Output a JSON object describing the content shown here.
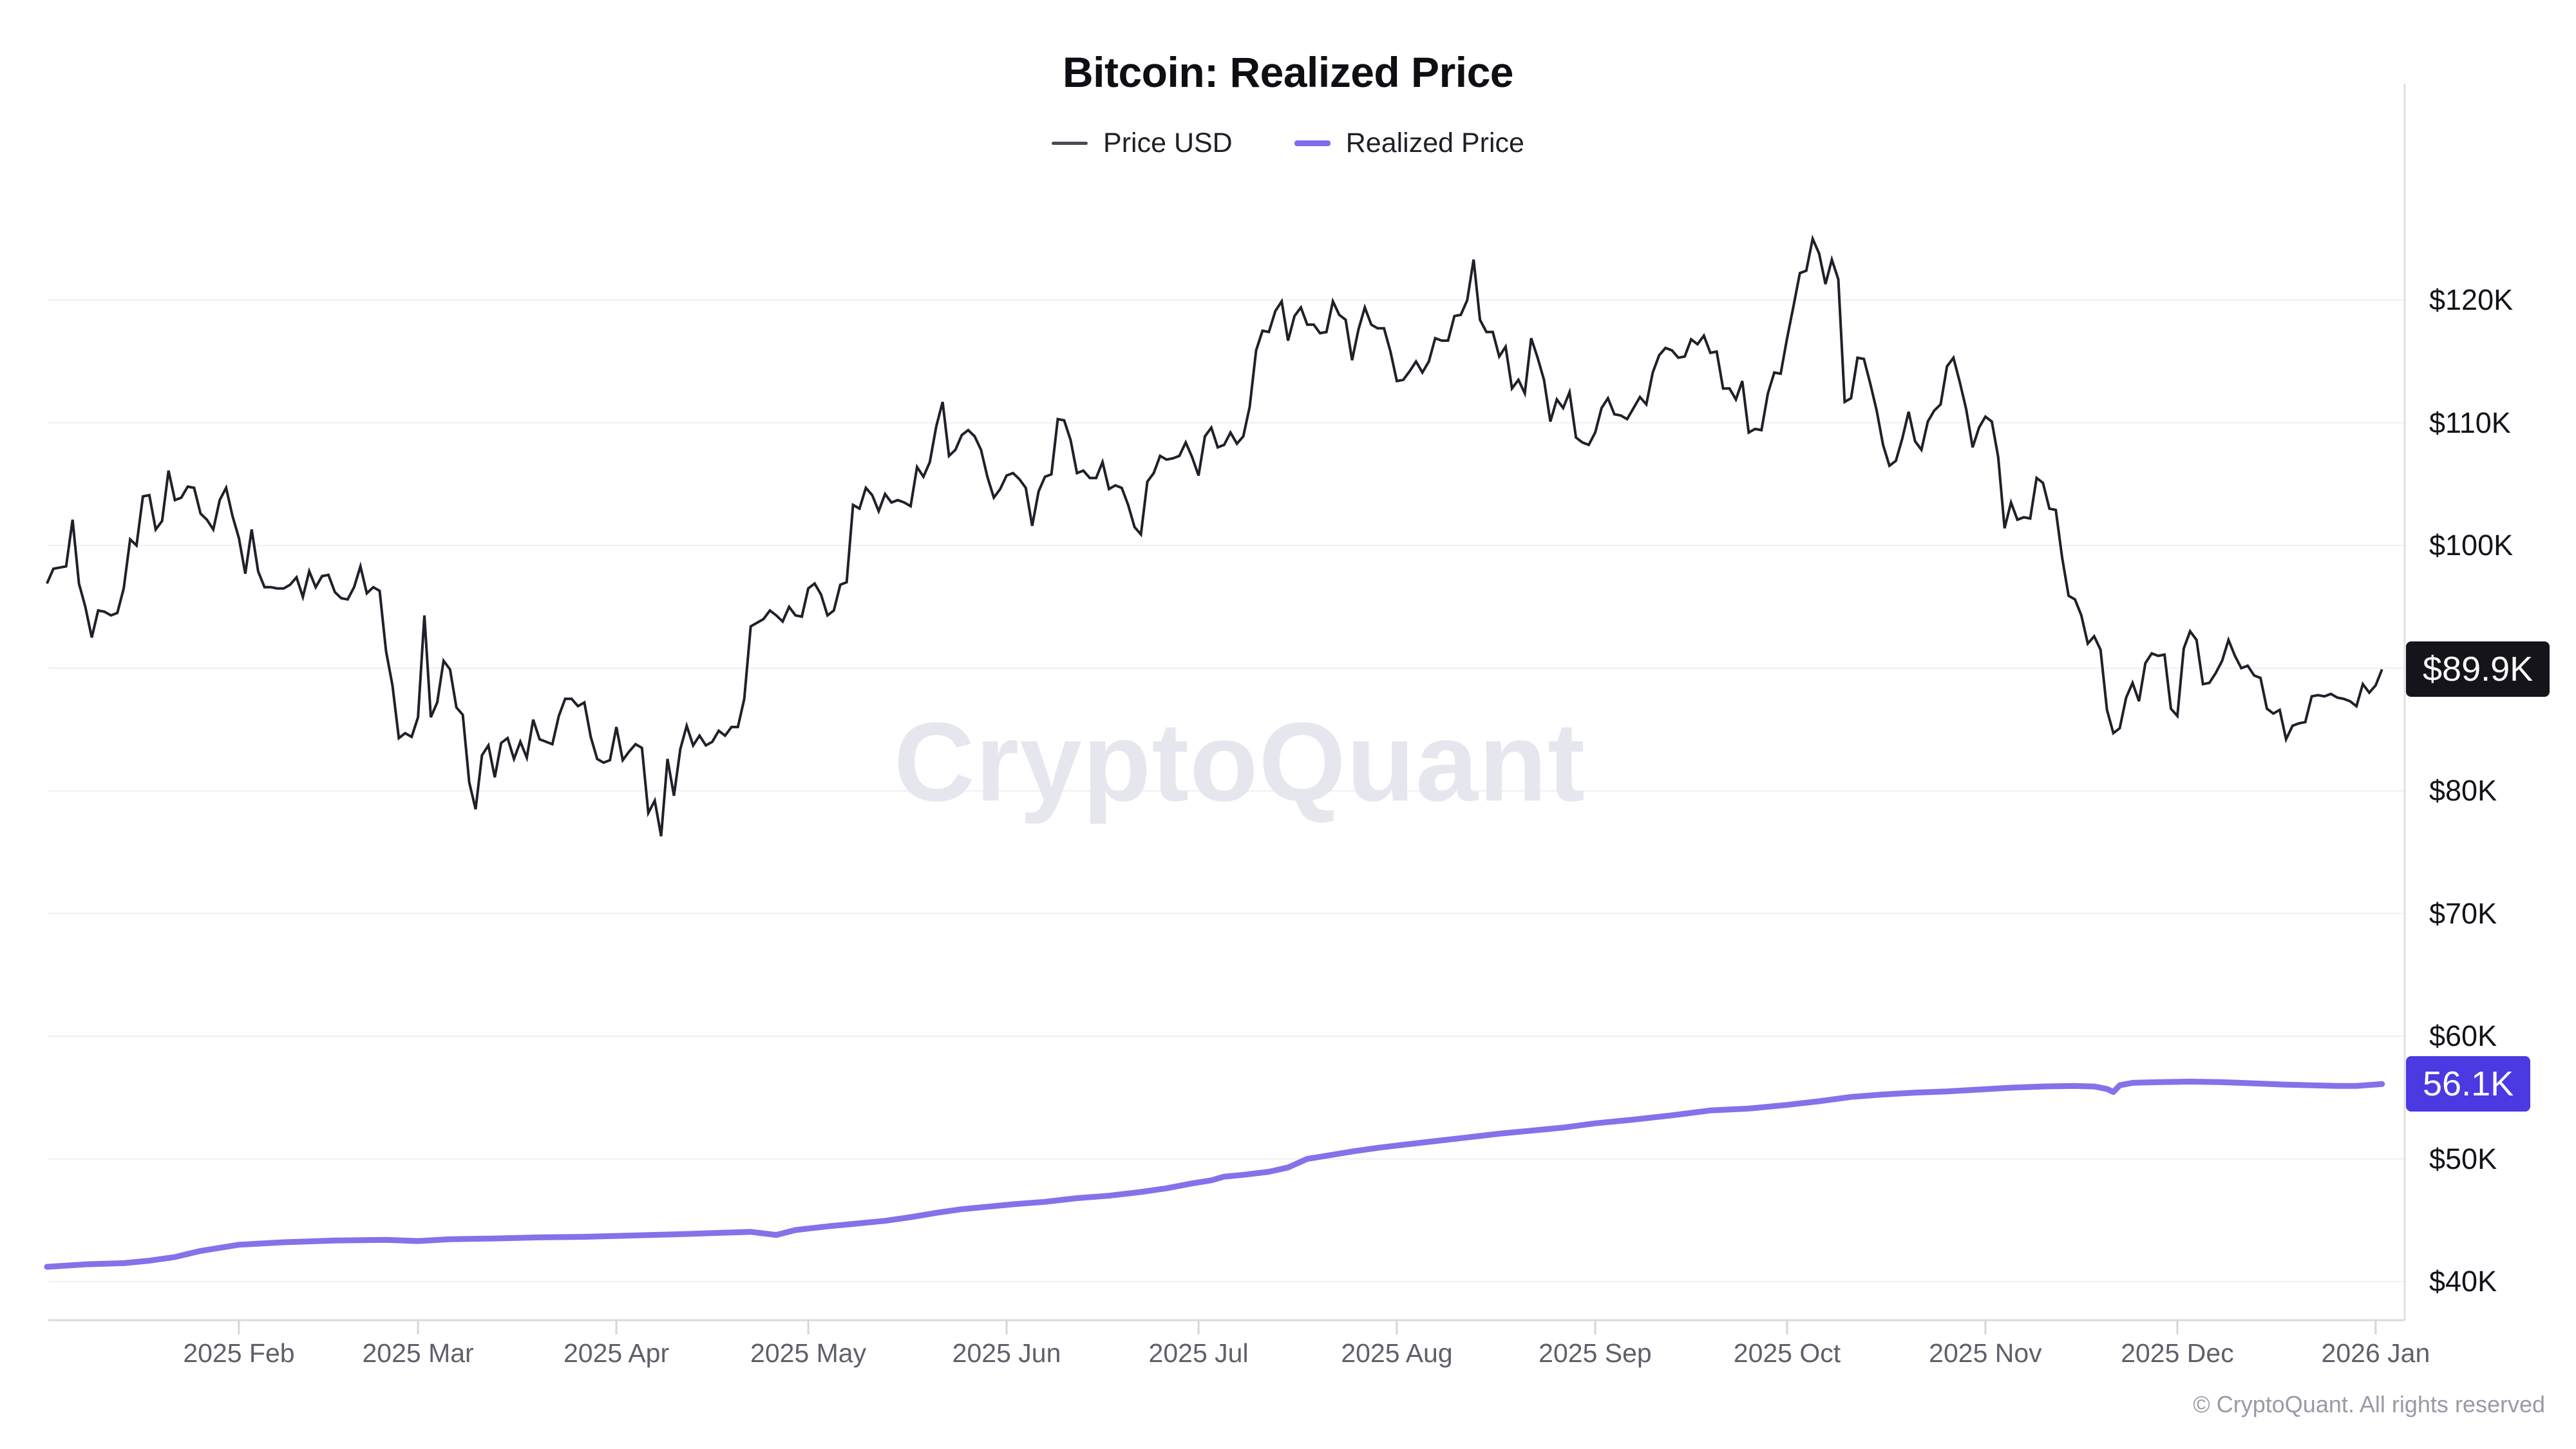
{
  "title": "Bitcoin: Realized Price",
  "legend": [
    {
      "label": "Price USD",
      "color": "#4a4a55"
    },
    {
      "label": "Realized Price",
      "color": "#7e6cee"
    }
  ],
  "watermark": "CryptoQuant",
  "copyright": "© CryptoQuant. All rights reserved",
  "badges": {
    "price_label": "$89.9K",
    "price_value_k": 89.9,
    "realized_label": "56.1K",
    "realized_value_k": 56.1
  },
  "axes": {
    "y_ticks": [
      {
        "k": 120,
        "label": "$120K"
      },
      {
        "k": 110,
        "label": "$110K"
      },
      {
        "k": 100,
        "label": "$100K"
      },
      {
        "k": 80,
        "label": "$80K"
      },
      {
        "k": 70,
        "label": "$70K"
      },
      {
        "k": 60,
        "label": "$60K"
      },
      {
        "k": 50,
        "label": "$50K"
      },
      {
        "k": 40,
        "label": "$40K"
      }
    ],
    "x_ticks": [
      {
        "date": "2025-02-01",
        "label": "2025 Feb"
      },
      {
        "date": "2025-03-01",
        "label": "2025 Mar"
      },
      {
        "date": "2025-04-01",
        "label": "2025 Apr"
      },
      {
        "date": "2025-05-01",
        "label": "2025 May"
      },
      {
        "date": "2025-06-01",
        "label": "2025 Jun"
      },
      {
        "date": "2025-07-01",
        "label": "2025 Jul"
      },
      {
        "date": "2025-08-01",
        "label": "2025 Aug"
      },
      {
        "date": "2025-09-01",
        "label": "2025 Sep"
      },
      {
        "date": "2025-10-01",
        "label": "2025 Oct"
      },
      {
        "date": "2025-11-01",
        "label": "2025 Nov"
      },
      {
        "date": "2025-12-01",
        "label": "2025 Dec"
      },
      {
        "date": "2026-01-01",
        "label": "2026 Jan"
      }
    ]
  },
  "chart_data": {
    "type": "line",
    "title": "Bitcoin: Realized Price",
    "unit": "USD (thousands)",
    "x_range": [
      "2025-01-02",
      "2026-01-02"
    ],
    "y_axis": {
      "min_k": 40,
      "max_k": 125,
      "gridlines_k": [
        40,
        50,
        60,
        70,
        80,
        90,
        100,
        110,
        120
      ]
    },
    "legend_position": "top-center",
    "grid": "horizontal-only",
    "series": [
      {
        "name": "Price USD",
        "color": "#20202a",
        "frequency": "daily",
        "start_date": "2025-01-02",
        "values_k_usd": [
          96.9,
          98.1,
          98.2,
          98.3,
          102.1,
          96.9,
          95.0,
          92.5,
          94.7,
          94.6,
          94.3,
          94.5,
          96.5,
          100.5,
          100.0,
          104.0,
          104.1,
          101.3,
          102.0,
          106.1,
          103.7,
          103.9,
          104.8,
          104.7,
          102.6,
          102.1,
          101.3,
          103.7,
          104.7,
          102.4,
          100.6,
          97.7,
          101.3,
          97.9,
          96.6,
          96.6,
          96.5,
          96.5,
          96.8,
          97.4,
          95.8,
          97.9,
          96.6,
          97.5,
          97.6,
          96.2,
          95.7,
          95.6,
          96.6,
          98.3,
          96.1,
          96.6,
          96.3,
          91.4,
          88.6,
          84.3,
          84.7,
          84.4,
          86.0,
          94.3,
          86.0,
          87.2,
          90.6,
          89.9,
          86.8,
          86.2,
          80.7,
          78.5,
          82.9,
          83.7,
          81.1,
          83.9,
          84.3,
          82.6,
          84.0,
          82.7,
          85.8,
          84.2,
          84.0,
          83.8,
          86.1,
          87.5,
          87.5,
          86.9,
          87.2,
          84.4,
          82.6,
          82.3,
          82.5,
          85.2,
          82.5,
          83.2,
          83.8,
          83.5,
          78.2,
          79.2,
          76.3,
          82.6,
          79.6,
          83.4,
          85.3,
          83.7,
          84.5,
          83.7,
          84.0,
          84.9,
          84.5,
          85.2,
          85.2,
          87.5,
          93.4,
          93.7,
          94.0,
          94.7,
          94.3,
          93.8,
          95.0,
          94.3,
          94.2,
          96.5,
          96.9,
          96.0,
          94.3,
          94.7,
          96.8,
          97.0,
          103.3,
          103.0,
          104.7,
          104.1,
          102.8,
          104.2,
          103.5,
          103.7,
          103.5,
          103.2,
          106.4,
          105.6,
          106.8,
          109.7,
          111.7,
          107.3,
          107.8,
          109.0,
          109.4,
          108.9,
          107.8,
          105.6,
          103.9,
          104.6,
          105.7,
          105.9,
          105.4,
          104.7,
          101.6,
          104.4,
          105.6,
          105.8,
          110.3,
          110.2,
          108.6,
          105.9,
          106.1,
          105.5,
          105.5,
          106.8,
          104.6,
          104.9,
          104.7,
          103.3,
          101.5,
          100.9,
          105.2,
          105.9,
          107.3,
          107.0,
          107.1,
          107.3,
          108.4,
          107.2,
          105.7,
          108.9,
          109.6,
          108.0,
          108.2,
          109.2,
          108.3,
          108.9,
          111.3,
          115.9,
          117.5,
          117.4,
          119.1,
          119.9,
          116.7,
          118.7,
          119.4,
          118.0,
          118.0,
          117.3,
          117.4,
          119.9,
          118.8,
          118.4,
          115.1,
          117.6,
          119.4,
          118.0,
          117.7,
          117.7,
          115.8,
          113.4,
          113.5,
          114.2,
          115.0,
          114.1,
          115.0,
          116.9,
          116.7,
          116.7,
          118.7,
          118.8,
          120.0,
          123.3,
          118.4,
          117.4,
          117.4,
          115.4,
          116.2,
          112.8,
          113.5,
          112.4,
          116.9,
          115.3,
          113.5,
          110.1,
          111.9,
          111.2,
          112.5,
          108.8,
          108.4,
          108.2,
          109.2,
          111.2,
          112.0,
          110.7,
          110.6,
          110.3,
          111.2,
          112.1,
          111.5,
          114.1,
          115.5,
          116.1,
          115.9,
          115.3,
          115.4,
          116.8,
          116.4,
          117.1,
          115.7,
          115.8,
          112.8,
          112.8,
          111.9,
          113.4,
          109.2,
          109.5,
          109.4,
          112.4,
          114.1,
          114.0,
          116.9,
          119.5,
          122.2,
          122.4,
          125.0,
          123.8,
          121.3,
          123.3,
          121.7,
          111.7,
          112.0,
          115.3,
          115.2,
          113.2,
          111.0,
          108.2,
          106.5,
          106.9,
          108.7,
          110.9,
          108.5,
          107.8,
          110.1,
          111.0,
          111.5,
          114.6,
          115.3,
          113.3,
          111.1,
          108.0,
          109.6,
          110.5,
          110.1,
          107.2,
          101.4,
          103.5,
          102.1,
          102.3,
          102.2,
          105.5,
          105.1,
          103.0,
          102.9,
          99.0,
          95.9,
          95.6,
          94.3,
          92.0,
          92.6,
          91.5,
          86.6,
          84.7,
          85.1,
          87.6,
          88.8,
          87.3,
          90.4,
          91.2,
          91.0,
          91.1,
          86.7,
          86.1,
          91.6,
          93.0,
          92.3,
          88.7,
          88.8,
          89.6,
          90.6,
          92.3,
          91.0,
          90.0,
          90.2,
          89.4,
          89.2,
          86.7,
          86.3,
          86.6,
          84.2,
          85.3,
          85.5,
          85.6,
          87.7,
          87.8,
          87.7,
          87.9,
          87.6,
          87.5,
          87.3,
          86.9,
          88.7,
          88.0,
          88.6,
          89.9
        ]
      },
      {
        "name": "Realized Price",
        "color": "#8372e9",
        "points": [
          {
            "d": "2025-01-02",
            "v": 41.2
          },
          {
            "d": "2025-01-08",
            "v": 41.4
          },
          {
            "d": "2025-01-14",
            "v": 41.5
          },
          {
            "d": "2025-01-18",
            "v": 41.7
          },
          {
            "d": "2025-01-22",
            "v": 42.0
          },
          {
            "d": "2025-01-26",
            "v": 42.5
          },
          {
            "d": "2025-02-01",
            "v": 43.0
          },
          {
            "d": "2025-02-08",
            "v": 43.2
          },
          {
            "d": "2025-02-16",
            "v": 43.35
          },
          {
            "d": "2025-02-24",
            "v": 43.4
          },
          {
            "d": "2025-03-01",
            "v": 43.3
          },
          {
            "d": "2025-03-06",
            "v": 43.45
          },
          {
            "d": "2025-03-12",
            "v": 43.5
          },
          {
            "d": "2025-03-20",
            "v": 43.6
          },
          {
            "d": "2025-03-27",
            "v": 43.65
          },
          {
            "d": "2025-04-03",
            "v": 43.75
          },
          {
            "d": "2025-04-10",
            "v": 43.85
          },
          {
            "d": "2025-04-16",
            "v": 43.95
          },
          {
            "d": "2025-04-22",
            "v": 44.05
          },
          {
            "d": "2025-04-26",
            "v": 43.8
          },
          {
            "d": "2025-04-29",
            "v": 44.2
          },
          {
            "d": "2025-05-04",
            "v": 44.5
          },
          {
            "d": "2025-05-08",
            "v": 44.7
          },
          {
            "d": "2025-05-13",
            "v": 44.95
          },
          {
            "d": "2025-05-17",
            "v": 45.25
          },
          {
            "d": "2025-05-21",
            "v": 45.6
          },
          {
            "d": "2025-05-25",
            "v": 45.9
          },
          {
            "d": "2025-05-29",
            "v": 46.1
          },
          {
            "d": "2025-06-02",
            "v": 46.3
          },
          {
            "d": "2025-06-07",
            "v": 46.5
          },
          {
            "d": "2025-06-12",
            "v": 46.8
          },
          {
            "d": "2025-06-17",
            "v": 47.0
          },
          {
            "d": "2025-06-22",
            "v": 47.3
          },
          {
            "d": "2025-06-26",
            "v": 47.6
          },
          {
            "d": "2025-06-30",
            "v": 48.0
          },
          {
            "d": "2025-07-03",
            "v": 48.25
          },
          {
            "d": "2025-07-05",
            "v": 48.55
          },
          {
            "d": "2025-07-08",
            "v": 48.7
          },
          {
            "d": "2025-07-12",
            "v": 48.95
          },
          {
            "d": "2025-07-15",
            "v": 49.3
          },
          {
            "d": "2025-07-18",
            "v": 50.0
          },
          {
            "d": "2025-07-21",
            "v": 50.25
          },
          {
            "d": "2025-07-25",
            "v": 50.6
          },
          {
            "d": "2025-07-29",
            "v": 50.9
          },
          {
            "d": "2025-08-02",
            "v": 51.15
          },
          {
            "d": "2025-08-07",
            "v": 51.45
          },
          {
            "d": "2025-08-12",
            "v": 51.75
          },
          {
            "d": "2025-08-17",
            "v": 52.05
          },
          {
            "d": "2025-08-22",
            "v": 52.3
          },
          {
            "d": "2025-08-27",
            "v": 52.55
          },
          {
            "d": "2025-09-01",
            "v": 52.9
          },
          {
            "d": "2025-09-07",
            "v": 53.2
          },
          {
            "d": "2025-09-13",
            "v": 53.55
          },
          {
            "d": "2025-09-19",
            "v": 53.95
          },
          {
            "d": "2025-09-25",
            "v": 54.1
          },
          {
            "d": "2025-10-01",
            "v": 54.4
          },
          {
            "d": "2025-10-06",
            "v": 54.7
          },
          {
            "d": "2025-10-11",
            "v": 55.05
          },
          {
            "d": "2025-10-16",
            "v": 55.25
          },
          {
            "d": "2025-10-21",
            "v": 55.4
          },
          {
            "d": "2025-10-26",
            "v": 55.5
          },
          {
            "d": "2025-10-31",
            "v": 55.65
          },
          {
            "d": "2025-11-05",
            "v": 55.8
          },
          {
            "d": "2025-11-10",
            "v": 55.9
          },
          {
            "d": "2025-11-15",
            "v": 55.95
          },
          {
            "d": "2025-11-18",
            "v": 55.9
          },
          {
            "d": "2025-11-20",
            "v": 55.7
          },
          {
            "d": "2025-11-21",
            "v": 55.45
          },
          {
            "d": "2025-11-22",
            "v": 56.0
          },
          {
            "d": "2025-11-24",
            "v": 56.2
          },
          {
            "d": "2025-11-28",
            "v": 56.25
          },
          {
            "d": "2025-12-03",
            "v": 56.3
          },
          {
            "d": "2025-12-08",
            "v": 56.25
          },
          {
            "d": "2025-12-13",
            "v": 56.15
          },
          {
            "d": "2025-12-18",
            "v": 56.05
          },
          {
            "d": "2025-12-22",
            "v": 56.0
          },
          {
            "d": "2025-12-26",
            "v": 55.95
          },
          {
            "d": "2025-12-29",
            "v": 55.95
          },
          {
            "d": "2026-01-02",
            "v": 56.1
          }
        ]
      }
    ],
    "last_values": {
      "price_usd_k": 89.9,
      "realized_price_k": 56.1
    }
  }
}
